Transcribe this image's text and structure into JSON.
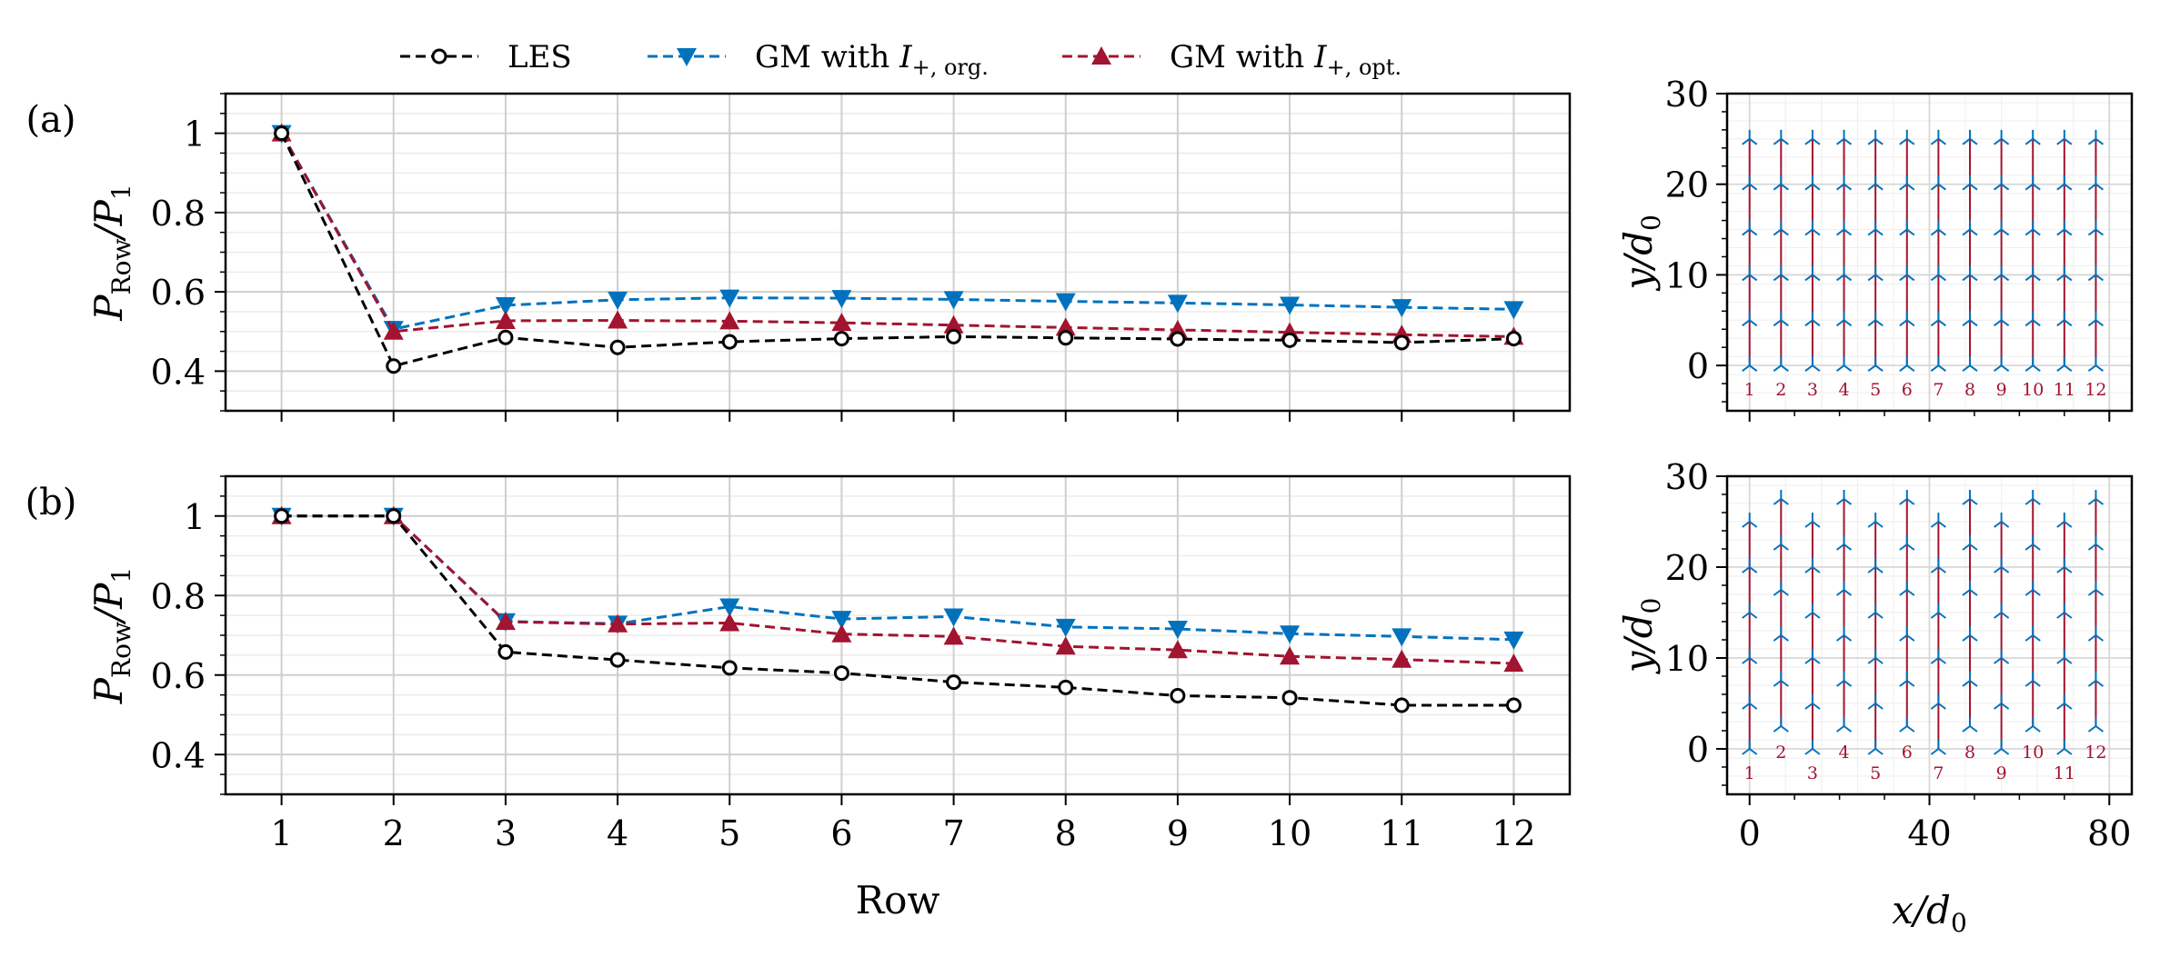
{
  "legend": {
    "entries": [
      {
        "name": "LES",
        "color": "#000000",
        "marker": "open-circle"
      },
      {
        "name": "GM with I+,org.",
        "base": "GM with ",
        "ivar": "I",
        "sub": "+, org.",
        "color": "#0072bd",
        "marker": "triangle-down"
      },
      {
        "name": "GM with I+,opt.",
        "base": "GM with ",
        "ivar": "I",
        "sub": "+, opt.",
        "color": "#a2142f",
        "marker": "triangle-up"
      }
    ]
  },
  "chart_data": [
    {
      "id": "a",
      "panel_label": "(a)",
      "type": "line",
      "title": "",
      "xlabel": "",
      "ylabel": "P_Row/P_1",
      "ylabel_main": "P",
      "ylabel_sub": "Row",
      "ylabel_den": "P",
      "ylabel_den_sub": "1",
      "xlim": [
        0.5,
        12.5
      ],
      "ylim": [
        0.3,
        1.1
      ],
      "yticks": [
        0.4,
        0.6,
        0.8,
        1.0
      ],
      "ytick_labels": [
        "0.4",
        "0.6",
        "0.8",
        "1"
      ],
      "categories": [
        1,
        2,
        3,
        4,
        5,
        6,
        7,
        8,
        9,
        10,
        11,
        12
      ],
      "series": [
        {
          "name": "LES",
          "values": [
            1.0,
            0.413,
            0.485,
            0.46,
            0.474,
            0.482,
            0.487,
            0.484,
            0.481,
            0.478,
            0.472,
            0.482
          ]
        },
        {
          "name": "GM with I+,org.",
          "values": [
            1.0,
            0.506,
            0.566,
            0.58,
            0.585,
            0.584,
            0.581,
            0.576,
            0.572,
            0.567,
            0.561,
            0.556
          ]
        },
        {
          "name": "GM with I+,opt.",
          "values": [
            1.0,
            0.5,
            0.527,
            0.528,
            0.526,
            0.522,
            0.516,
            0.51,
            0.504,
            0.498,
            0.492,
            0.487
          ]
        }
      ]
    },
    {
      "id": "b",
      "panel_label": "(b)",
      "type": "line",
      "title": "",
      "xlabel": "Row",
      "ylabel": "P_Row/P_1",
      "ylabel_main": "P",
      "ylabel_sub": "Row",
      "ylabel_den": "P",
      "ylabel_den_sub": "1",
      "xlim": [
        0.5,
        12.5
      ],
      "ylim": [
        0.3,
        1.1
      ],
      "yticks": [
        0.4,
        0.6,
        0.8,
        1.0
      ],
      "ytick_labels": [
        "0.4",
        "0.6",
        "0.8",
        "1"
      ],
      "xtick_labels": [
        "1",
        "2",
        "3",
        "4",
        "5",
        "6",
        "7",
        "8",
        "9",
        "10",
        "11",
        "12"
      ],
      "categories": [
        1,
        2,
        3,
        4,
        5,
        6,
        7,
        8,
        9,
        10,
        11,
        12
      ],
      "series": [
        {
          "name": "LES",
          "values": [
            1.0,
            1.0,
            0.658,
            0.638,
            0.618,
            0.605,
            0.582,
            0.569,
            0.548,
            0.543,
            0.524,
            0.524
          ]
        },
        {
          "name": "GM with I+,org.",
          "values": [
            1.0,
            1.0,
            0.735,
            0.729,
            0.772,
            0.741,
            0.747,
            0.721,
            0.716,
            0.704,
            0.697,
            0.689
          ]
        },
        {
          "name": "GM with I+,opt.",
          "values": [
            1.0,
            1.0,
            0.734,
            0.728,
            0.731,
            0.703,
            0.697,
            0.672,
            0.663,
            0.647,
            0.639,
            0.629
          ]
        }
      ]
    },
    {
      "id": "layout-a",
      "type": "scatter",
      "description": "aligned turbine layout",
      "xlabel": "",
      "ylabel": "y/d0",
      "ylabel_main": "y",
      "ylabel_den": "d",
      "ylabel_den_sub": "0",
      "xlim": [
        -5,
        85
      ],
      "ylim": [
        -5,
        30
      ],
      "yticks": [
        0,
        10,
        20,
        30
      ],
      "ytick_labels": [
        "0",
        "10",
        "20",
        "30"
      ],
      "column_x": [
        0,
        3.5,
        7,
        10.5,
        14,
        17.5,
        21,
        24.5,
        28,
        31.5,
        35,
        38.5
      ],
      "column_x_scaled": [
        0,
        7,
        14,
        21,
        28,
        35,
        42,
        49,
        56,
        63,
        70,
        77
      ],
      "row_labels": [
        "1",
        "2",
        "3",
        "4",
        "5",
        "6",
        "7",
        "8",
        "9",
        "10",
        "11",
        "12"
      ],
      "row_labels_stagger": [
        0,
        0,
        0,
        0,
        0,
        0,
        0,
        0,
        0,
        0,
        0,
        0
      ],
      "turbine_y": [
        0,
        5,
        10,
        15,
        20,
        25
      ],
      "turbine_y_shift": [
        0,
        0,
        0,
        0,
        0,
        0,
        0,
        0,
        0,
        0,
        0,
        0
      ],
      "colors": {
        "turbine": "#0072bd",
        "wake": "#a2142f"
      }
    },
    {
      "id": "layout-b",
      "type": "scatter",
      "description": "staggered turbine layout",
      "xlabel": "x/d0",
      "xlabel_main": "x",
      "xlabel_den": "d",
      "xlabel_den_sub": "0",
      "ylabel": "y/d0",
      "ylabel_main": "y",
      "ylabel_den": "d",
      "ylabel_den_sub": "0",
      "xlim": [
        -5,
        85
      ],
      "ylim": [
        -5,
        30
      ],
      "xticks": [
        0,
        40,
        80
      ],
      "xtick_labels": [
        "0",
        "40",
        "80"
      ],
      "yticks": [
        0,
        10,
        20,
        30
      ],
      "ytick_labels": [
        "0",
        "10",
        "20",
        "30"
      ],
      "column_x_scaled": [
        0,
        7,
        14,
        21,
        28,
        35,
        42,
        49,
        56,
        63,
        70,
        77
      ],
      "row_labels": [
        "1",
        "2",
        "3",
        "4",
        "5",
        "6",
        "7",
        "8",
        "9",
        "10",
        "11",
        "12"
      ],
      "row_labels_stagger": [
        0,
        1,
        0,
        1,
        0,
        1,
        0,
        1,
        0,
        1,
        0,
        1
      ],
      "turbine_y": [
        0,
        5,
        10,
        15,
        20,
        25
      ],
      "turbine_y_shift": [
        0,
        2.5,
        0,
        2.5,
        0,
        2.5,
        0,
        2.5,
        0,
        2.5,
        0,
        2.5
      ],
      "colors": {
        "turbine": "#0072bd",
        "wake": "#a2142f"
      }
    }
  ]
}
